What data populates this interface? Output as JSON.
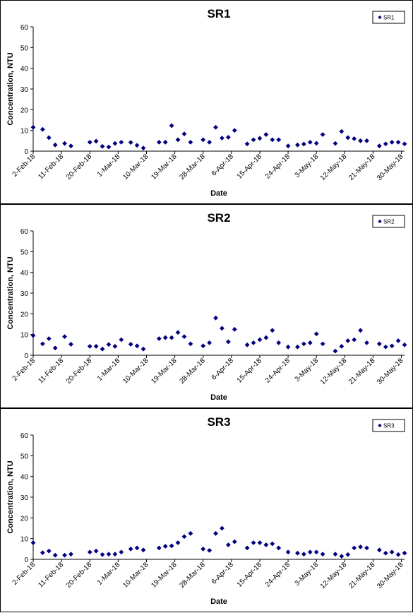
{
  "chart_data": [
    {
      "type": "scatter",
      "title": "SR1",
      "xlabel": "Date",
      "ylabel": "Concentration, NTU",
      "ylim": [
        0,
        60
      ],
      "y_ticks": [
        0,
        10,
        20,
        30,
        40,
        50,
        60
      ],
      "x_ticks": [
        "2-Feb-18",
        "11-Feb-18",
        "20-Feb-18",
        "1-Mar-18",
        "10-Mar-18",
        "19-Mar-18",
        "28-Mar-18",
        "6-Apr-18",
        "15-Apr-18",
        "24-Apr-18",
        "3-May-18",
        "12-May-18",
        "21-May-18",
        "30-May-18"
      ],
      "x_range": [
        "2018-02-02",
        "2018-05-31"
      ],
      "grid": false,
      "legend_position": "top-right",
      "marker_color": "#00007f",
      "series": [
        {
          "name": "SR1",
          "x": [
            "2018-02-02",
            "2018-02-05",
            "2018-02-07",
            "2018-02-09",
            "2018-02-12",
            "2018-02-14",
            "2018-02-20",
            "2018-02-22",
            "2018-02-24",
            "2018-02-26",
            "2018-02-28",
            "2018-03-02",
            "2018-03-05",
            "2018-03-07",
            "2018-03-09",
            "2018-03-14",
            "2018-03-16",
            "2018-03-18",
            "2018-03-20",
            "2018-03-22",
            "2018-03-24",
            "2018-03-28",
            "2018-03-30",
            "2018-04-01",
            "2018-04-03",
            "2018-04-05",
            "2018-04-07",
            "2018-04-11",
            "2018-04-13",
            "2018-04-15",
            "2018-04-17",
            "2018-04-19",
            "2018-04-21",
            "2018-04-24",
            "2018-04-27",
            "2018-04-29",
            "2018-05-01",
            "2018-05-03",
            "2018-05-05",
            "2018-05-09",
            "2018-05-11",
            "2018-05-13",
            "2018-05-15",
            "2018-05-17",
            "2018-05-19",
            "2018-05-23",
            "2018-05-25",
            "2018-05-27",
            "2018-05-29",
            "2018-05-31"
          ],
          "y": [
            11.5,
            10.5,
            6.5,
            3,
            3.7,
            2.5,
            4.3,
            4.8,
            2.3,
            2,
            3.7,
            4.3,
            4.2,
            2.8,
            1.5,
            4.3,
            4.3,
            12.3,
            5.5,
            8.3,
            4.3,
            5.5,
            4.3,
            11.5,
            6.3,
            6.7,
            10,
            3.5,
            5.5,
            6.2,
            8,
            5.5,
            5.5,
            2.5,
            3,
            3.4,
            4.3,
            3.8,
            8,
            3.7,
            9.5,
            6.5,
            6,
            5,
            5,
            2.5,
            3.5,
            4.3,
            4.3,
            3.5
          ]
        }
      ]
    },
    {
      "type": "scatter",
      "title": "SR2",
      "xlabel": "Date",
      "ylabel": "Concentration, NTU",
      "ylim": [
        0,
        60
      ],
      "y_ticks": [
        0,
        10,
        20,
        30,
        40,
        50,
        60
      ],
      "x_ticks": [
        "2-Feb-18",
        "11-Feb-18",
        "20-Feb-18",
        "1-Mar-18",
        "10-Mar-18",
        "19-Mar-18",
        "28-Mar-18",
        "6-Apr-18",
        "15-Apr-18",
        "24-Apr-18",
        "3-May-18",
        "12-May-18",
        "21-May-18",
        "30-May-18"
      ],
      "x_range": [
        "2018-02-02",
        "2018-05-31"
      ],
      "grid": false,
      "legend_position": "top-right",
      "marker_color": "#00007f",
      "series": [
        {
          "name": "SR2",
          "x": [
            "2018-02-02",
            "2018-02-05",
            "2018-02-07",
            "2018-02-09",
            "2018-02-12",
            "2018-02-14",
            "2018-02-20",
            "2018-02-22",
            "2018-02-24",
            "2018-02-26",
            "2018-02-28",
            "2018-03-02",
            "2018-03-05",
            "2018-03-07",
            "2018-03-09",
            "2018-03-14",
            "2018-03-16",
            "2018-03-18",
            "2018-03-20",
            "2018-03-22",
            "2018-03-24",
            "2018-03-28",
            "2018-03-30",
            "2018-04-01",
            "2018-04-03",
            "2018-04-05",
            "2018-04-07",
            "2018-04-11",
            "2018-04-13",
            "2018-04-15",
            "2018-04-17",
            "2018-04-19",
            "2018-04-21",
            "2018-04-24",
            "2018-04-27",
            "2018-04-29",
            "2018-05-01",
            "2018-05-03",
            "2018-05-05",
            "2018-05-09",
            "2018-05-11",
            "2018-05-13",
            "2018-05-15",
            "2018-05-17",
            "2018-05-19",
            "2018-05-23",
            "2018-05-25",
            "2018-05-27",
            "2018-05-29",
            "2018-05-31"
          ],
          "y": [
            9.5,
            5.5,
            8,
            3.5,
            9,
            5.3,
            4.3,
            4.3,
            3,
            5.2,
            4.3,
            7.5,
            5.3,
            4.5,
            3,
            8,
            8.5,
            8.5,
            11,
            9,
            5.5,
            4.5,
            6,
            18,
            13,
            6.5,
            12.5,
            5,
            6,
            7.5,
            8.5,
            12,
            6,
            4,
            4,
            5.5,
            6,
            10.3,
            5.5,
            2,
            4.3,
            7,
            7.5,
            12,
            6,
            5.5,
            4,
            4.5,
            7,
            5
          ]
        }
      ]
    },
    {
      "type": "scatter",
      "title": "SR3",
      "xlabel": "Date",
      "ylabel": "Concentration, NTU",
      "ylim": [
        0,
        60
      ],
      "y_ticks": [
        0,
        10,
        20,
        30,
        40,
        50,
        60
      ],
      "x_ticks": [
        "2-Feb-18",
        "11-Feb-18",
        "20-Feb-18",
        "1-Mar-18",
        "10-Mar-18",
        "19-Mar-18",
        "28-Mar-18",
        "6-Apr-18",
        "15-Apr-18",
        "24-Apr-18",
        "3-May-18",
        "12-May-18",
        "21-May-18",
        "30-May-18"
      ],
      "x_range": [
        "2018-02-02",
        "2018-05-31"
      ],
      "grid": false,
      "legend_position": "top-right",
      "marker_color": "#00007f",
      "series": [
        {
          "name": "SR3",
          "x": [
            "2018-02-02",
            "2018-02-05",
            "2018-02-07",
            "2018-02-09",
            "2018-02-12",
            "2018-02-14",
            "2018-02-20",
            "2018-02-22",
            "2018-02-24",
            "2018-02-26",
            "2018-02-28",
            "2018-03-02",
            "2018-03-05",
            "2018-03-07",
            "2018-03-09",
            "2018-03-14",
            "2018-03-16",
            "2018-03-18",
            "2018-03-20",
            "2018-03-22",
            "2018-03-24",
            "2018-03-28",
            "2018-03-30",
            "2018-04-01",
            "2018-04-03",
            "2018-04-05",
            "2018-04-07",
            "2018-04-11",
            "2018-04-13",
            "2018-04-15",
            "2018-04-17",
            "2018-04-19",
            "2018-04-21",
            "2018-04-24",
            "2018-04-27",
            "2018-04-29",
            "2018-05-01",
            "2018-05-03",
            "2018-05-05",
            "2018-05-09",
            "2018-05-11",
            "2018-05-13",
            "2018-05-15",
            "2018-05-17",
            "2018-05-19",
            "2018-05-23",
            "2018-05-25",
            "2018-05-27",
            "2018-05-29",
            "2018-05-31"
          ],
          "y": [
            8,
            3.2,
            4,
            2,
            2,
            2.5,
            3.5,
            4,
            2.3,
            2.5,
            2.5,
            3.5,
            5,
            5.5,
            4.5,
            5.5,
            6.3,
            6.5,
            8,
            11,
            12.5,
            5,
            4.3,
            12.5,
            15,
            7,
            8.5,
            5.5,
            8,
            8,
            7,
            7.5,
            5.5,
            3.5,
            3,
            2.5,
            3.5,
            3.5,
            2.5,
            2.5,
            1.5,
            2.3,
            5.5,
            6,
            5.5,
            4.5,
            3,
            3.5,
            2.3,
            3
          ]
        }
      ]
    }
  ]
}
